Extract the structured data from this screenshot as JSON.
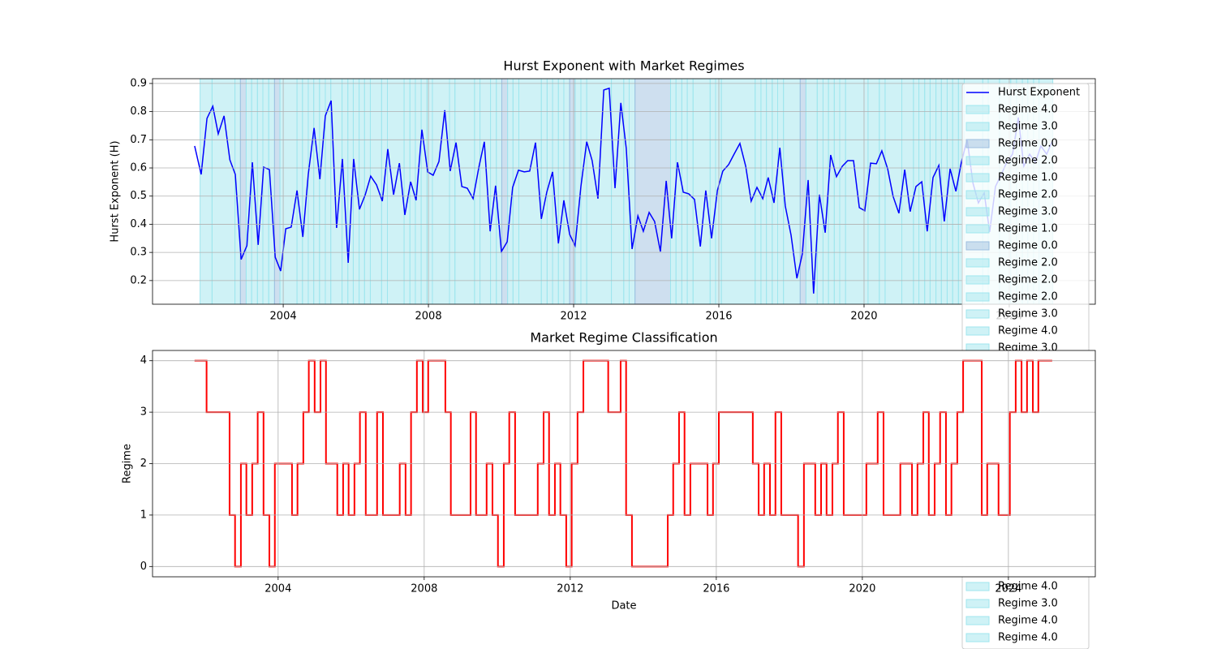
{
  "chart_data": [
    {
      "type": "line",
      "title": "Hurst Exponent with Market Regimes",
      "ylabel": "Hurst Exponent (H)",
      "x": [
        2001.56,
        2001.74,
        2001.9,
        2002.06,
        2002.21,
        2002.37,
        2002.53,
        2002.68,
        2002.84,
        2003.0,
        2003.15,
        2003.31,
        2003.46,
        2003.62,
        2003.78,
        2003.93,
        2004.07,
        2004.22,
        2004.38,
        2004.54,
        2004.69,
        2004.85,
        2005.01,
        2005.16,
        2005.32,
        2005.47,
        2005.63,
        2005.79,
        2005.94,
        2006.1,
        2006.26,
        2006.41,
        2006.57,
        2006.73,
        2006.88,
        2007.04,
        2007.2,
        2007.35,
        2007.51,
        2007.66,
        2007.82,
        2007.98,
        2008.13,
        2008.29,
        2008.45,
        2008.6,
        2008.76,
        2008.92,
        2009.07,
        2009.23,
        2009.39,
        2009.54,
        2009.7,
        2009.85,
        2010.01,
        2010.17,
        2010.32,
        2010.48,
        2010.64,
        2010.79,
        2010.95,
        2011.11,
        2011.26,
        2011.42,
        2011.58,
        2011.73,
        2011.89,
        2012.04,
        2012.2,
        2012.36,
        2012.51,
        2012.67,
        2012.83,
        2012.98,
        2013.14,
        2013.3,
        2013.45,
        2013.61,
        2013.77,
        2013.92,
        2014.08,
        2014.23,
        2014.39,
        2014.55,
        2014.7,
        2014.86,
        2015.02,
        2015.17,
        2015.33,
        2015.49,
        2015.64,
        2015.8,
        2015.96,
        2016.11,
        2016.27,
        2016.42,
        2016.58,
        2016.74,
        2016.89,
        2017.05,
        2017.21,
        2017.36,
        2017.52,
        2017.68,
        2017.83,
        2017.99,
        2018.15,
        2018.3,
        2018.46,
        2018.61,
        2018.77,
        2018.93,
        2019.08,
        2019.24,
        2019.4,
        2019.55,
        2019.71,
        2019.87,
        2020.02,
        2020.18,
        2020.34,
        2020.49,
        2020.65,
        2020.8,
        2020.96,
        2021.12,
        2021.27,
        2021.43,
        2021.59,
        2021.74,
        2021.9,
        2022.06,
        2022.21,
        2022.37,
        2022.53,
        2022.68,
        2022.84,
        2023.0,
        2023.15,
        2023.31,
        2023.46,
        2023.62,
        2023.78,
        2023.93,
        2024.09,
        2024.25,
        2024.4,
        2024.56,
        2024.72,
        2024.87,
        2025.03,
        2025.18
      ],
      "series": [
        {
          "name": "Hurst Exponent",
          "color": "#0000ff",
          "values": [
            0.678,
            0.577,
            0.776,
            0.819,
            0.721,
            0.785,
            0.629,
            0.577,
            0.275,
            0.324,
            0.62,
            0.327,
            0.603,
            0.594,
            0.283,
            0.234,
            0.384,
            0.39,
            0.52,
            0.355,
            0.577,
            0.742,
            0.56,
            0.785,
            0.839,
            0.387,
            0.632,
            0.263,
            0.632,
            0.453,
            0.505,
            0.571,
            0.54,
            0.482,
            0.667,
            0.505,
            0.617,
            0.433,
            0.551,
            0.485,
            0.736,
            0.586,
            0.574,
            0.623,
            0.805,
            0.589,
            0.69,
            0.534,
            0.528,
            0.491,
            0.603,
            0.693,
            0.375,
            0.537,
            0.303,
            0.338,
            0.531,
            0.592,
            0.586,
            0.589,
            0.69,
            0.419,
            0.514,
            0.586,
            0.332,
            0.485,
            0.364,
            0.324,
            0.534,
            0.693,
            0.626,
            0.491,
            0.877,
            0.883,
            0.528,
            0.831,
            0.669,
            0.312,
            0.43,
            0.375,
            0.442,
            0.41,
            0.303,
            0.554,
            0.35,
            0.62,
            0.514,
            0.508,
            0.488,
            0.321,
            0.52,
            0.35,
            0.52,
            0.589,
            0.612,
            0.649,
            0.687,
            0.606,
            0.482,
            0.531,
            0.491,
            0.566,
            0.476,
            0.672,
            0.465,
            0.361,
            0.208,
            0.295,
            0.557,
            0.154,
            0.505,
            0.37,
            0.646,
            0.569,
            0.606,
            0.626,
            0.626,
            0.459,
            0.448,
            0.617,
            0.615,
            0.661,
            0.597,
            0.499,
            0.439,
            0.594,
            0.445,
            0.534,
            0.551,
            0.375,
            0.566,
            0.609,
            0.41,
            0.597,
            0.517,
            0.62,
            0.701,
            0.546,
            0.476,
            0.511,
            0.373,
            0.534,
            0.577,
            0.62,
            0.649,
            0.779,
            0.606,
            0.649,
            0.62,
            0.678,
            0.649,
            0.693
          ]
        }
      ],
      "xlim": [
        2000.4,
        2026.37
      ],
      "ylim": [
        0.116,
        0.917
      ],
      "xticks": [
        2004,
        2008,
        2012,
        2016,
        2020,
        2024
      ],
      "yticks": [
        0.2,
        0.3,
        0.4,
        0.5,
        0.6,
        0.7,
        0.8,
        0.9
      ],
      "grid": true,
      "legend": "upper right",
      "shade_colors": [
        "#9dbfe0",
        "#9fe6ee",
        "#9fe6ee",
        "#9fe6ee",
        "#9fe6ee"
      ],
      "legend_labels": [
        "Regime 4.0",
        "Regime 3.0",
        "Regime 0.0",
        "Regime 2.0",
        "Regime 1.0",
        "Regime 2.0",
        "Regime 3.0",
        "Regime 1.0",
        "Regime 0.0",
        "Regime 2.0",
        "Regime 2.0",
        "Regime 2.0",
        "Regime 3.0",
        "Regime 4.0",
        "Regime 3.0"
      ],
      "legend_labels_lower": [
        "Regime 4.0",
        "Regime 3.0",
        "Regime 4.0",
        "Regime 4.0"
      ]
    },
    {
      "type": "step",
      "title": "Market Regime Classification",
      "xlabel": "Date",
      "ylabel": "Regime",
      "color": "#ff0000",
      "x": [
        2001.71,
        2002.04,
        2002.67,
        2002.82,
        2002.98,
        2003.13,
        2003.29,
        2003.44,
        2003.6,
        2003.76,
        2003.91,
        2004.38,
        2004.53,
        2004.69,
        2004.84,
        2005.0,
        2005.16,
        2005.31,
        2005.62,
        2005.78,
        2005.93,
        2006.09,
        2006.24,
        2006.4,
        2006.71,
        2006.87,
        2007.33,
        2007.49,
        2007.64,
        2007.8,
        2007.96,
        2008.11,
        2008.58,
        2008.73,
        2009.27,
        2009.42,
        2009.71,
        2009.87,
        2010.02,
        2010.18,
        2010.33,
        2010.49,
        2011.11,
        2011.27,
        2011.42,
        2011.58,
        2011.73,
        2011.89,
        2012.04,
        2012.2,
        2012.36,
        2013.04,
        2013.38,
        2013.53,
        2013.69,
        2014.67,
        2014.82,
        2014.98,
        2015.13,
        2015.29,
        2015.76,
        2015.91,
        2016.07,
        2017.0,
        2017.16,
        2017.31,
        2017.47,
        2017.62,
        2017.78,
        2018.24,
        2018.4,
        2018.71,
        2018.87,
        2019.02,
        2019.18,
        2019.33,
        2019.49,
        2020.11,
        2020.42,
        2020.58,
        2021.04,
        2021.36,
        2021.51,
        2021.67,
        2021.82,
        2021.98,
        2022.13,
        2022.29,
        2022.44,
        2022.6,
        2022.76,
        2023.27,
        2023.42,
        2023.73,
        2024.04,
        2024.2,
        2024.36,
        2024.51,
        2024.67,
        2024.82,
        2025.2
      ],
      "values": [
        4,
        3,
        1,
        0,
        2,
        1,
        2,
        3,
        1,
        0,
        2,
        1,
        2,
        3,
        4,
        3,
        4,
        2,
        1,
        2,
        1,
        2,
        3,
        1,
        3,
        1,
        2,
        1,
        3,
        4,
        3,
        4,
        3,
        1,
        3,
        1,
        2,
        1,
        0,
        2,
        3,
        1,
        2,
        3,
        1,
        2,
        1,
        0,
        2,
        3,
        4,
        3,
        4,
        1,
        0,
        1,
        2,
        3,
        1,
        2,
        1,
        2,
        3,
        2,
        1,
        2,
        1,
        3,
        1,
        0,
        2,
        1,
        2,
        1,
        2,
        3,
        1,
        2,
        3,
        1,
        2,
        1,
        2,
        3,
        1,
        2,
        3,
        1,
        2,
        3,
        4,
        1,
        2,
        1,
        3,
        4,
        3,
        4,
        3,
        4,
        4
      ],
      "xlim": [
        2000.56,
        2026.38
      ],
      "ylim": [
        -0.2,
        4.2
      ],
      "xticks": [
        2004,
        2008,
        2012,
        2016,
        2020,
        2024
      ],
      "yticks": [
        0,
        1,
        2,
        3,
        4
      ],
      "grid": true
    }
  ]
}
